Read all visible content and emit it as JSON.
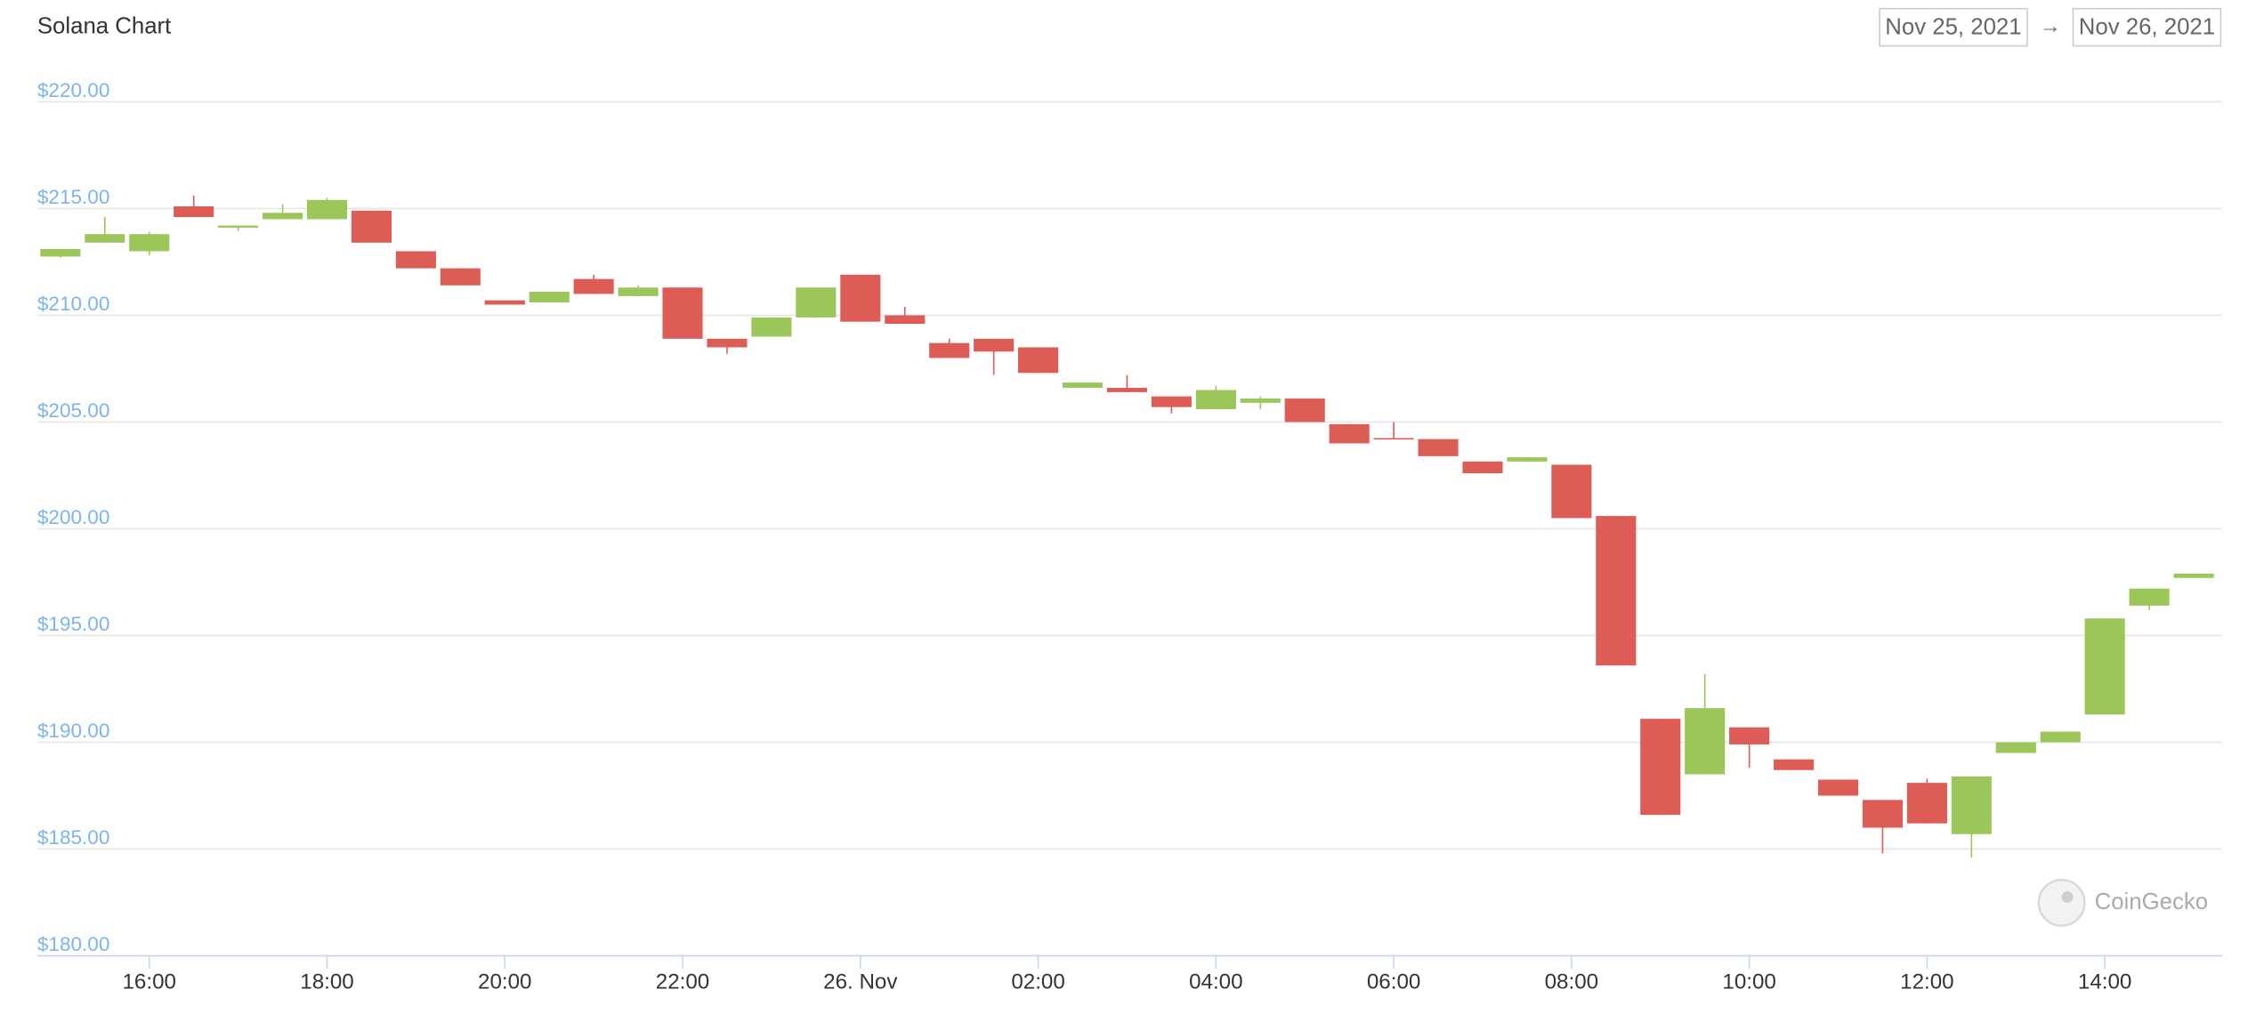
{
  "header": {
    "date_from": "Nov 25, 2021",
    "arrow": "→",
    "date_to": "Nov 26, 2021"
  },
  "watermark": "CoinGecko",
  "chart_data": {
    "type": "candlestick",
    "title": "Solana Chart",
    "x": [
      15,
      15.5,
      16,
      16.5,
      17,
      17.5,
      18,
      18.5,
      19,
      19.5,
      20,
      20.5,
      21,
      21.5,
      22,
      22.5,
      23,
      23.5,
      24,
      24.5,
      25,
      25.5,
      26,
      26.5,
      27,
      27.5,
      28,
      28.5,
      29,
      29.5,
      30,
      30.5,
      31,
      31.5,
      32,
      32.5,
      33,
      33.5,
      34,
      34.5,
      35,
      35.5,
      36,
      36.5,
      37,
      37.5,
      38,
      38.5,
      39
    ],
    "open": [
      212.75,
      213.4,
      213.0,
      215.1,
      214.1,
      214.5,
      214.5,
      214.9,
      213.0,
      212.2,
      210.7,
      210.6,
      211.7,
      210.9,
      211.3,
      208.9,
      209.0,
      209.9,
      211.9,
      210.0,
      208.7,
      208.9,
      208.5,
      206.6,
      206.6,
      206.2,
      205.6,
      205.9,
      206.1,
      204.9,
      204.25,
      204.2,
      203.15,
      203.15,
      203.0,
      200.6,
      191.1,
      188.5,
      190.7,
      189.2,
      188.25,
      187.3,
      188.1,
      185.7,
      189.5,
      190.0,
      191.3,
      196.4,
      197.7
    ],
    "high": [
      213.1,
      214.6,
      213.9,
      215.6,
      214.2,
      215.2,
      215.5,
      214.9,
      213.0,
      212.2,
      210.7,
      211.1,
      211.9,
      211.4,
      211.3,
      208.9,
      209.9,
      211.3,
      211.9,
      210.4,
      208.9,
      208.9,
      208.5,
      206.85,
      207.2,
      206.2,
      206.7,
      206.2,
      206.1,
      204.9,
      205.0,
      204.2,
      203.15,
      203.35,
      203.0,
      200.6,
      191.1,
      193.2,
      190.7,
      189.2,
      188.25,
      187.3,
      188.3,
      188.4,
      190.0,
      190.5,
      195.8,
      197.2,
      197.9
    ],
    "low": [
      212.7,
      213.4,
      212.8,
      214.6,
      213.95,
      214.5,
      214.5,
      213.4,
      212.2,
      211.4,
      210.5,
      210.6,
      211.0,
      210.9,
      208.9,
      208.2,
      209.0,
      209.9,
      209.7,
      209.6,
      208.0,
      207.2,
      207.3,
      206.6,
      206.4,
      205.4,
      205.6,
      205.6,
      205.0,
      204.0,
      204.2,
      203.4,
      202.6,
      203.15,
      200.5,
      193.6,
      186.6,
      188.5,
      188.8,
      188.7,
      187.5,
      184.8,
      186.2,
      184.6,
      189.5,
      190.0,
      191.3,
      196.2,
      197.7
    ],
    "close": [
      213.1,
      213.8,
      213.8,
      214.6,
      214.2,
      214.8,
      215.4,
      213.4,
      212.2,
      211.4,
      210.5,
      211.1,
      211.0,
      211.3,
      208.9,
      208.5,
      209.9,
      211.3,
      209.7,
      209.6,
      208.0,
      208.3,
      207.3,
      206.85,
      206.4,
      205.7,
      206.5,
      206.1,
      205.0,
      204.0,
      204.2,
      203.4,
      202.6,
      203.35,
      200.5,
      193.6,
      186.6,
      191.6,
      189.9,
      188.7,
      187.5,
      186.0,
      186.2,
      188.4,
      190.0,
      190.5,
      195.8,
      197.2,
      197.9
    ],
    "up_color": "#9bc65a",
    "down_color": "#dd5d56",
    "xlim": [
      14.74,
      39.32
    ],
    "xticks": [
      {
        "value": 16,
        "label": "16:00"
      },
      {
        "value": 18,
        "label": "18:00"
      },
      {
        "value": 20,
        "label": "20:00"
      },
      {
        "value": 22,
        "label": "22:00"
      },
      {
        "value": 24,
        "label": "26. Nov"
      },
      {
        "value": 26,
        "label": "02:00"
      },
      {
        "value": 28,
        "label": "04:00"
      },
      {
        "value": 30,
        "label": "06:00"
      },
      {
        "value": 32,
        "label": "08:00"
      },
      {
        "value": 34,
        "label": "10:00"
      },
      {
        "value": 36,
        "label": "12:00"
      },
      {
        "value": 38,
        "label": "14:00"
      }
    ],
    "ylim": [
      180,
      220
    ],
    "yticks": [
      {
        "value": 180,
        "label": "$180.00"
      },
      {
        "value": 185,
        "label": "$185.00"
      },
      {
        "value": 190,
        "label": "$190.00"
      },
      {
        "value": 195,
        "label": "$195.00"
      },
      {
        "value": 200,
        "label": "$200.00"
      },
      {
        "value": 205,
        "label": "$205.00"
      },
      {
        "value": 210,
        "label": "$210.00"
      },
      {
        "value": 215,
        "label": "$215.00"
      },
      {
        "value": 220,
        "label": "$220.00"
      }
    ],
    "grid": true
  }
}
